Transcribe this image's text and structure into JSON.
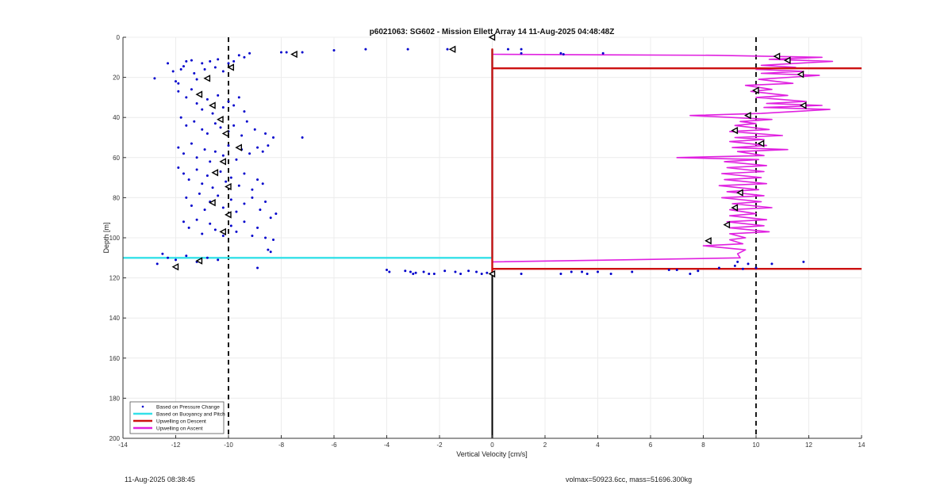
{
  "chart_data": {
    "type": "scatter",
    "title": "p6021063: SG602 - Mission Ellett Array 14 11-Aug-2025 04:48:48Z",
    "xlabel": "Vertical Velocity [cm/s]",
    "ylabel": "Depth [m]",
    "xlim": [
      -14,
      14
    ],
    "ylim": [
      0,
      200
    ],
    "y_reversed": true,
    "xticks": [
      -14,
      -12,
      -10,
      -8,
      -6,
      -4,
      -2,
      0,
      2,
      4,
      6,
      8,
      10,
      12,
      14
    ],
    "yticks": [
      0,
      20,
      40,
      60,
      80,
      100,
      120,
      140,
      160,
      180,
      200
    ],
    "grid": true,
    "legend_position": "bottom-left",
    "colors": {
      "pressure": "#0000cc",
      "buoyancy": "#33e0e8",
      "descent": "#cc1111",
      "ascent": "#e020e0",
      "threshold": "#000000"
    },
    "threshold_lines": [
      {
        "x": -10,
        "style": "dashed"
      },
      {
        "x": 10,
        "style": "dashed"
      }
    ],
    "series": [
      {
        "name": "Based on Pressure Change",
        "kind": "points",
        "points": [
          [
            -12.8,
            20.5
          ],
          [
            -12.3,
            13
          ],
          [
            -12.1,
            17
          ],
          [
            -12.0,
            22
          ],
          [
            -11.9,
            23
          ],
          [
            -11.8,
            16
          ],
          [
            -11.7,
            14.5
          ],
          [
            -11.6,
            12
          ],
          [
            -11.4,
            11.5
          ],
          [
            -11.3,
            18
          ],
          [
            -11.2,
            21
          ],
          [
            -11.0,
            13
          ],
          [
            -10.9,
            16
          ],
          [
            -10.7,
            12
          ],
          [
            -10.5,
            15
          ],
          [
            -10.4,
            11
          ],
          [
            -10.2,
            17
          ],
          [
            -10.0,
            13
          ],
          [
            -9.8,
            12
          ],
          [
            -9.6,
            9
          ],
          [
            -9.4,
            10
          ],
          [
            -9.2,
            8
          ],
          [
            -11.9,
            27
          ],
          [
            -11.6,
            30
          ],
          [
            -11.4,
            26
          ],
          [
            -11.2,
            33
          ],
          [
            -11.0,
            36
          ],
          [
            -10.8,
            31
          ],
          [
            -10.6,
            38
          ],
          [
            -10.4,
            29
          ],
          [
            -10.2,
            35
          ],
          [
            -10.0,
            32
          ],
          [
            -9.8,
            34
          ],
          [
            -9.6,
            30
          ],
          [
            -9.4,
            37
          ],
          [
            -11.8,
            40
          ],
          [
            -11.6,
            44
          ],
          [
            -11.3,
            42
          ],
          [
            -11.0,
            46
          ],
          [
            -10.8,
            48
          ],
          [
            -10.5,
            43
          ],
          [
            -10.3,
            45
          ],
          [
            -10.0,
            47
          ],
          [
            -9.8,
            44
          ],
          [
            -9.5,
            49
          ],
          [
            -9.3,
            42
          ],
          [
            -9.0,
            46
          ],
          [
            -8.6,
            48
          ],
          [
            -8.3,
            50
          ],
          [
            -7.2,
            50
          ],
          [
            -11.9,
            55
          ],
          [
            -11.7,
            58
          ],
          [
            -11.4,
            53
          ],
          [
            -11.2,
            60
          ],
          [
            -10.9,
            56
          ],
          [
            -10.7,
            62
          ],
          [
            -10.5,
            57
          ],
          [
            -10.2,
            59
          ],
          [
            -10.0,
            54
          ],
          [
            -9.7,
            61
          ],
          [
            -9.5,
            56
          ],
          [
            -9.2,
            58
          ],
          [
            -8.9,
            55
          ],
          [
            -8.7,
            57
          ],
          [
            -8.5,
            54
          ],
          [
            -11.9,
            65
          ],
          [
            -11.7,
            68
          ],
          [
            -11.5,
            71
          ],
          [
            -11.2,
            66
          ],
          [
            -11.0,
            73
          ],
          [
            -10.8,
            69
          ],
          [
            -10.6,
            75
          ],
          [
            -10.3,
            67
          ],
          [
            -10.1,
            72
          ],
          [
            -9.9,
            70
          ],
          [
            -9.6,
            74
          ],
          [
            -9.4,
            68
          ],
          [
            -9.1,
            76
          ],
          [
            -8.9,
            71
          ],
          [
            -8.7,
            73
          ],
          [
            -11.6,
            80
          ],
          [
            -11.4,
            84
          ],
          [
            -11.1,
            78
          ],
          [
            -10.9,
            86
          ],
          [
            -10.7,
            82
          ],
          [
            -10.4,
            79
          ],
          [
            -10.2,
            85
          ],
          [
            -9.9,
            81
          ],
          [
            -9.7,
            87
          ],
          [
            -9.4,
            83
          ],
          [
            -9.1,
            80
          ],
          [
            -8.8,
            86
          ],
          [
            -8.6,
            82
          ],
          [
            -8.4,
            90
          ],
          [
            -8.2,
            88
          ],
          [
            -11.7,
            92
          ],
          [
            -11.5,
            95
          ],
          [
            -11.2,
            91
          ],
          [
            -11.0,
            98
          ],
          [
            -10.7,
            93
          ],
          [
            -10.5,
            96
          ],
          [
            -10.2,
            99
          ],
          [
            -9.9,
            94
          ],
          [
            -9.7,
            97
          ],
          [
            -9.4,
            92
          ],
          [
            -9.1,
            99
          ],
          [
            -8.9,
            95
          ],
          [
            -8.6,
            100
          ],
          [
            -8.3,
            101
          ],
          [
            -8.5,
            106
          ],
          [
            -8.4,
            107
          ],
          [
            -12.5,
            108
          ],
          [
            -12.3,
            110
          ],
          [
            -12.0,
            111
          ],
          [
            -11.6,
            109
          ],
          [
            -11.2,
            112
          ],
          [
            -10.8,
            110
          ],
          [
            -10.4,
            111
          ],
          [
            -12.7,
            113
          ],
          [
            -8.9,
            115
          ],
          [
            -12.0,
            115
          ],
          [
            -8.0,
            7.5
          ],
          [
            -7.8,
            7.5
          ],
          [
            -7.2,
            7.5
          ],
          [
            -6.0,
            6.5
          ],
          [
            -4.8,
            6
          ],
          [
            -3.2,
            6
          ],
          [
            -1.7,
            6
          ],
          [
            0.6,
            6
          ],
          [
            1.1,
            6
          ],
          [
            1.1,
            8
          ],
          [
            2.6,
            8
          ],
          [
            2.7,
            8.5
          ],
          [
            4.2,
            8
          ],
          [
            -4.0,
            116
          ],
          [
            -3.9,
            117
          ],
          [
            -3.3,
            116.5
          ],
          [
            -3.1,
            117
          ],
          [
            -3.0,
            118
          ],
          [
            -2.9,
            117.5
          ],
          [
            -2.6,
            117
          ],
          [
            -2.4,
            118
          ],
          [
            -2.2,
            118
          ],
          [
            -1.8,
            116.5
          ],
          [
            -1.4,
            117
          ],
          [
            -1.2,
            118
          ],
          [
            -0.9,
            116.5
          ],
          [
            -0.6,
            117
          ],
          [
            -0.4,
            118
          ],
          [
            -0.2,
            117.5
          ],
          [
            1.1,
            118
          ],
          [
            2.6,
            118
          ],
          [
            3.0,
            117
          ],
          [
            3.4,
            117
          ],
          [
            3.6,
            118
          ],
          [
            4.0,
            117
          ],
          [
            4.5,
            118
          ],
          [
            5.3,
            117
          ],
          [
            6.7,
            116
          ],
          [
            7.0,
            116
          ],
          [
            7.5,
            118
          ],
          [
            7.8,
            116.5
          ],
          [
            8.6,
            115
          ],
          [
            9.3,
            112
          ],
          [
            9.7,
            113
          ],
          [
            10.0,
            115
          ],
          [
            10.6,
            113
          ],
          [
            11.8,
            112
          ],
          [
            9.5,
            115.5
          ],
          [
            9.2,
            114
          ]
        ]
      },
      {
        "name": "Based on Buoyancy and Pitch",
        "kind": "path",
        "points": [
          [
            0.0,
            6
          ],
          [
            0.0,
            20
          ],
          [
            0.0,
            40
          ],
          [
            0.0,
            60
          ],
          [
            0.0,
            80
          ],
          [
            0.0,
            100
          ],
          [
            0.0,
            110
          ],
          [
            -4,
            110
          ],
          [
            -8,
            110
          ],
          [
            -14,
            110
          ]
        ]
      },
      {
        "name": "Upwelling on Descent",
        "kind": "path",
        "points": [
          [
            14,
            15.5
          ],
          [
            0,
            15.5
          ],
          [
            0,
            6
          ],
          [
            0,
            118
          ],
          [
            0,
            115.5
          ],
          [
            14,
            115.5
          ]
        ]
      },
      {
        "name": "Upwelling on Ascent",
        "kind": "path",
        "points": [
          [
            0,
            112
          ],
          [
            5,
            111
          ],
          [
            9.4,
            110
          ],
          [
            9.3,
            108
          ],
          [
            9.6,
            106
          ],
          [
            8.0,
            104
          ],
          [
            9.5,
            103
          ],
          [
            9.0,
            101
          ],
          [
            9.6,
            100
          ],
          [
            9.0,
            98
          ],
          [
            10.5,
            97
          ],
          [
            9.0,
            95
          ],
          [
            10.3,
            94
          ],
          [
            8.9,
            92
          ],
          [
            10.4,
            91
          ],
          [
            9.0,
            89
          ],
          [
            10.0,
            88
          ],
          [
            9.0,
            86
          ],
          [
            10.6,
            85
          ],
          [
            9.1,
            83
          ],
          [
            10.2,
            82
          ],
          [
            8.7,
            80
          ],
          [
            10.3,
            79
          ],
          [
            8.9,
            77
          ],
          [
            10.1,
            76
          ],
          [
            8.6,
            74
          ],
          [
            10.4,
            73
          ],
          [
            8.8,
            71
          ],
          [
            10.2,
            70
          ],
          [
            8.7,
            68
          ],
          [
            10.3,
            67
          ],
          [
            8.9,
            65
          ],
          [
            10.4,
            64
          ],
          [
            8.8,
            62
          ],
          [
            10.1,
            61
          ],
          [
            7.0,
            60
          ],
          [
            10.3,
            59
          ],
          [
            9.3,
            57
          ],
          [
            11.2,
            56
          ],
          [
            9.1,
            55
          ],
          [
            10.4,
            54
          ],
          [
            9.0,
            52
          ],
          [
            10.3,
            51
          ],
          [
            9.2,
            50
          ],
          [
            11.0,
            49
          ],
          [
            9.0,
            47
          ],
          [
            10.5,
            46
          ],
          [
            9.2,
            44
          ],
          [
            10.0,
            43
          ],
          [
            9.4,
            42
          ],
          [
            10.6,
            41
          ],
          [
            7.5,
            39
          ],
          [
            10.2,
            38
          ],
          [
            12.8,
            36
          ],
          [
            10.3,
            35
          ],
          [
            12.5,
            34
          ],
          [
            10.4,
            33
          ],
          [
            11.9,
            32
          ],
          [
            10.0,
            30
          ],
          [
            11.2,
            29
          ],
          [
            9.8,
            27
          ],
          [
            10.6,
            26
          ],
          [
            9.6,
            24
          ],
          [
            11.4,
            23
          ],
          [
            10.1,
            21
          ],
          [
            12.4,
            19
          ],
          [
            10.2,
            18
          ],
          [
            11.8,
            17
          ],
          [
            10.0,
            16
          ],
          [
            11.5,
            15
          ],
          [
            10.2,
            14
          ],
          [
            12.9,
            12
          ],
          [
            10.5,
            11
          ],
          [
            12.5,
            10
          ],
          [
            8.5,
            9
          ],
          [
            0,
            8.5
          ],
          [
            0,
            6
          ]
        ]
      }
    ],
    "markers": [
      {
        "type": "triangle-left",
        "x": 0.0,
        "y": 0
      },
      {
        "type": "triangle-left",
        "x": -1.5,
        "y": 6
      },
      {
        "type": "triangle-left",
        "x": -7.5,
        "y": 8.5
      },
      {
        "type": "triangle-left",
        "x": -9.9,
        "y": 15
      },
      {
        "type": "triangle-left",
        "x": -10.8,
        "y": 20.5
      },
      {
        "type": "triangle-left",
        "x": -11.1,
        "y": 28.5
      },
      {
        "type": "triangle-left",
        "x": -10.6,
        "y": 34
      },
      {
        "type": "triangle-left",
        "x": -10.3,
        "y": 41
      },
      {
        "type": "triangle-left",
        "x": -10.1,
        "y": 48
      },
      {
        "type": "triangle-left",
        "x": -9.6,
        "y": 55
      },
      {
        "type": "triangle-left",
        "x": -10.2,
        "y": 62
      },
      {
        "type": "triangle-left",
        "x": -10.5,
        "y": 67.5
      },
      {
        "type": "triangle-left",
        "x": -10.0,
        "y": 74.5
      },
      {
        "type": "triangle-left",
        "x": -10.6,
        "y": 82.5
      },
      {
        "type": "triangle-left",
        "x": -10.0,
        "y": 88.5
      },
      {
        "type": "triangle-left",
        "x": -10.2,
        "y": 97
      },
      {
        "type": "triangle-left",
        "x": -11.1,
        "y": 111.5
      },
      {
        "type": "triangle-left",
        "x": -12.0,
        "y": 114.5
      },
      {
        "type": "triangle-left",
        "x": 0.0,
        "y": 118
      },
      {
        "type": "triangle-left",
        "x": 10.8,
        "y": 9.5
      },
      {
        "type": "triangle-left",
        "x": 11.2,
        "y": 11.5
      },
      {
        "type": "triangle-left",
        "x": 11.7,
        "y": 18.5
      },
      {
        "type": "triangle-left",
        "x": 10.0,
        "y": 26.5
      },
      {
        "type": "triangle-left",
        "x": 11.8,
        "y": 34
      },
      {
        "type": "triangle-left",
        "x": 9.7,
        "y": 39
      },
      {
        "type": "triangle-left",
        "x": 9.2,
        "y": 46.5
      },
      {
        "type": "triangle-left",
        "x": 10.2,
        "y": 53
      },
      {
        "type": "triangle-left",
        "x": 9.4,
        "y": 77.5
      },
      {
        "type": "triangle-left",
        "x": 9.2,
        "y": 85
      },
      {
        "type": "triangle-left",
        "x": 8.9,
        "y": 93.5
      },
      {
        "type": "triangle-left",
        "x": 8.2,
        "y": 101.5
      }
    ]
  },
  "footer": {
    "left": "11-Aug-2025 08:38:45",
    "right": "volmax=50923.6cc, mass=51696.300kg"
  }
}
